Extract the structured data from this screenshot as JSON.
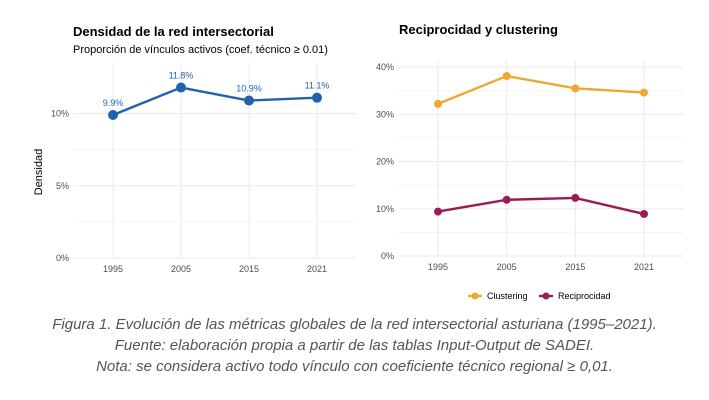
{
  "chart_data": [
    {
      "type": "line",
      "title": "Densidad de la red intersectorial",
      "subtitle": "Proporción de vínculos activos (coef. técnico ≥ 0.01)",
      "xlabel": "",
      "ylabel": "Densidad",
      "categories": [
        "1995",
        "2005",
        "2015",
        "2021"
      ],
      "series": [
        {
          "values": [
            9.9,
            11.8,
            10.9,
            11.1
          ],
          "data_labels": [
            "9.9%",
            "11.8%",
            "10.9%",
            "11.1%"
          ],
          "color": "#1f63b0"
        }
      ],
      "ylim": [
        0,
        13.5
      ],
      "yticks": [
        0,
        5,
        10
      ],
      "ytick_labels": [
        "0%",
        "5%",
        "10%"
      ],
      "grid": true,
      "legend": "none"
    },
    {
      "type": "line",
      "title": "Reciprocidad y clustering",
      "xlabel": "",
      "ylabel": "",
      "categories": [
        "1995",
        "2005",
        "2015",
        "2021"
      ],
      "series": [
        {
          "name": "Clustering",
          "values": [
            32.2,
            38.1,
            35.5,
            34.6
          ],
          "color": "#efa82b"
        },
        {
          "name": "Reciprocidad",
          "values": [
            9.4,
            11.9,
            12.3,
            8.9
          ],
          "color": "#9b1b57"
        }
      ],
      "ylim": [
        0,
        41.5
      ],
      "yticks": [
        0,
        10,
        20,
        30,
        40
      ],
      "ytick_labels": [
        "0%",
        "10%",
        "20%",
        "30%",
        "40%"
      ],
      "grid": true,
      "legend": "bottom"
    }
  ],
  "caption": {
    "line1": "Figura 1. Evolución de las métricas globales de la red intersectorial asturiana (1995–2021).",
    "line2": "Fuente: elaboración propia a partir de las tablas Input-Output de SADEI.",
    "line3": "Nota: se considera activo todo vínculo con coeficiente técnico regional ≥ 0,01."
  },
  "colors": {
    "grid": "#ebebeb",
    "text": "#4d4d4d",
    "title": "#000000"
  }
}
